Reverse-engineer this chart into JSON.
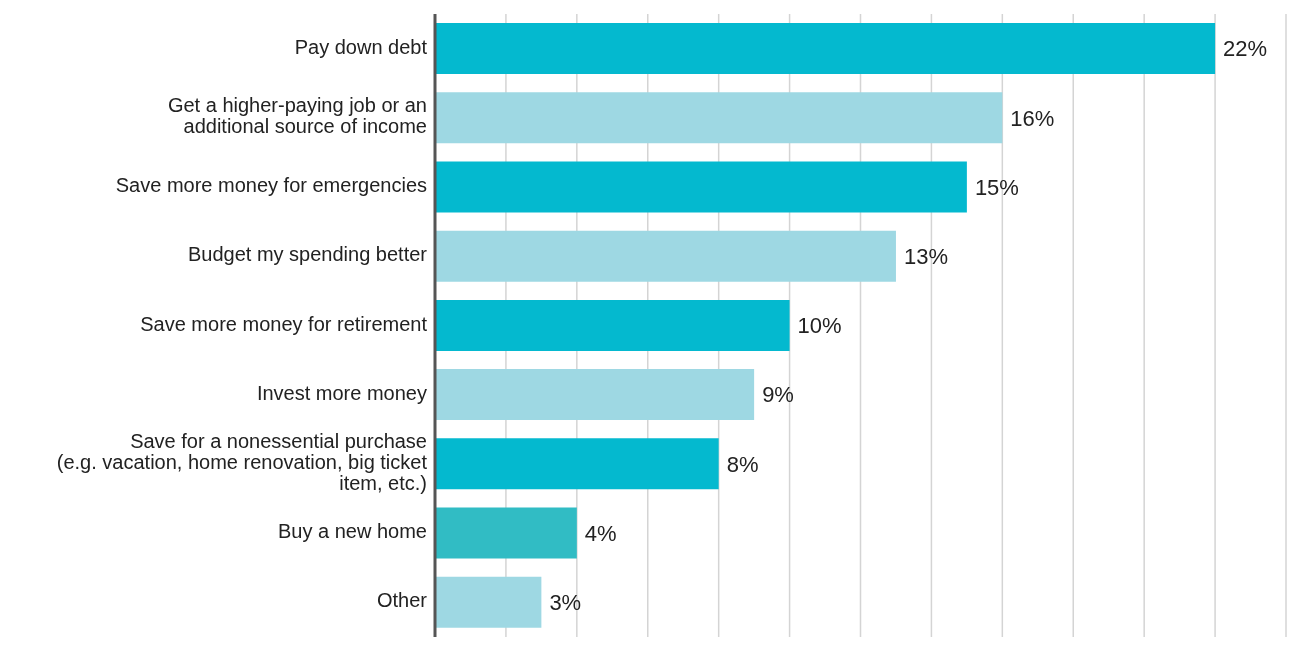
{
  "chart_data": {
    "type": "bar",
    "orientation": "horizontal",
    "categories": [
      "Pay down debt",
      "Get a higher-paying job or an\nadditional source of income",
      "Save more money for emergencies",
      "Budget my spending better",
      "Save more money for retirement",
      "Invest more money",
      "Save for a nonessential purchase\n(e.g. vacation, home renovation, big ticket\nitem, etc.)",
      "Buy a new home",
      "Other"
    ],
    "values": [
      22,
      16,
      15,
      13,
      10,
      9,
      8,
      4,
      3
    ],
    "value_labels": [
      "22%",
      "16%",
      "15%",
      "13%",
      "10%",
      "9%",
      "8%",
      "4%",
      "3%"
    ],
    "colors": [
      "#04b9cf",
      "#9ed8e3",
      "#04b9cf",
      "#9ed8e3",
      "#04b9cf",
      "#9ed8e3",
      "#04b9cf",
      "#31bcc4",
      "#9ed8e3"
    ],
    "xlim": [
      0,
      24
    ],
    "xticks": [
      {
        "value": 0,
        "label": null
      },
      {
        "value": 2,
        "label": null
      },
      {
        "value": 4,
        "label": null
      },
      {
        "value": 6,
        "label": null
      },
      {
        "value": 8,
        "label": null
      },
      {
        "value": 10,
        "label": null
      },
      {
        "value": 12,
        "label": null
      },
      {
        "value": 14,
        "label": null
      },
      {
        "value": 16,
        "label": null
      },
      {
        "value": 18,
        "label": null
      },
      {
        "value": 20,
        "label": null
      },
      {
        "value": 22,
        "label": null
      },
      {
        "value": 24,
        "label": null
      }
    ],
    "grid": "x",
    "tick_labels": "y"
  }
}
